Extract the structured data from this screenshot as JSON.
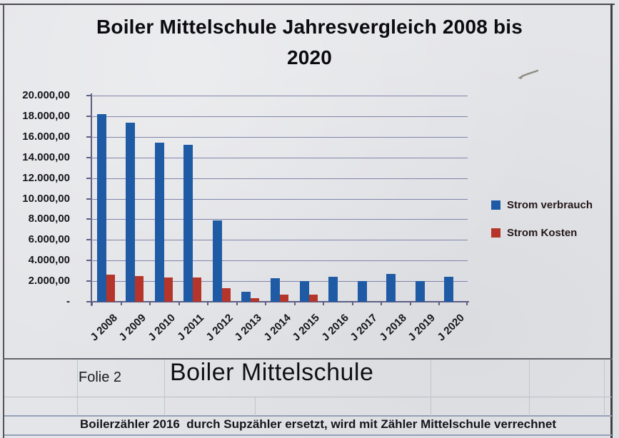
{
  "title": {
    "line1": "Boiler Mittelschule Jahresvergleich 2008 bis",
    "line2": "2020"
  },
  "footer": {
    "slide_label": "Folie 2",
    "sheet_title": "Boiler Mittelschule"
  },
  "note": "Boilerzähler 2016  durch Supzähler ersetzt, wird mit Zähler Mittelschule verrechnet",
  "colors": {
    "strom_verbrauch": "#1f5aa5",
    "strom_kosten": "#b5352a",
    "gridline": "#8084ab",
    "axis": "#5d5f84",
    "page_border": "#4b4b50",
    "note_border": "#96a0b8"
  },
  "chart_data": {
    "type": "bar",
    "title": "Boiler Mittelschule Jahresvergleich 2008 bis 2020",
    "categories": [
      "J 2008",
      "J 2009",
      "J 2010",
      "J 2011",
      "J 2012",
      "J 2013",
      "J 2014",
      "J 2015",
      "J 2016",
      "J 2017",
      "J 2018",
      "J 2019",
      "J 2020"
    ],
    "series": [
      {
        "name": "Strom verbrauch",
        "color": "#1f5aa5",
        "values": [
          18200,
          17400,
          15400,
          15200,
          7900,
          1000,
          2300,
          2000,
          2400,
          2000,
          2700,
          2000,
          2450
        ]
      },
      {
        "name": "Strom Kosten",
        "color": "#b5352a",
        "values": [
          2600,
          2500,
          2350,
          2350,
          1300,
          350,
          700,
          700,
          0,
          0,
          0,
          0,
          0
        ]
      }
    ],
    "xlabel": "",
    "ylabel": "",
    "ylim": [
      0,
      20000
    ],
    "ytick_step": 2000,
    "ytick_labels_top_to_bottom": [
      "20.000,00",
      "18.000,00",
      "16.000,00",
      "14.000,00",
      "12.000,00",
      "10.000,00",
      "8.000,00",
      "6.000,00",
      "4.000,00",
      "2.000,00",
      "-"
    ],
    "grid": true,
    "legend_position": "right"
  }
}
